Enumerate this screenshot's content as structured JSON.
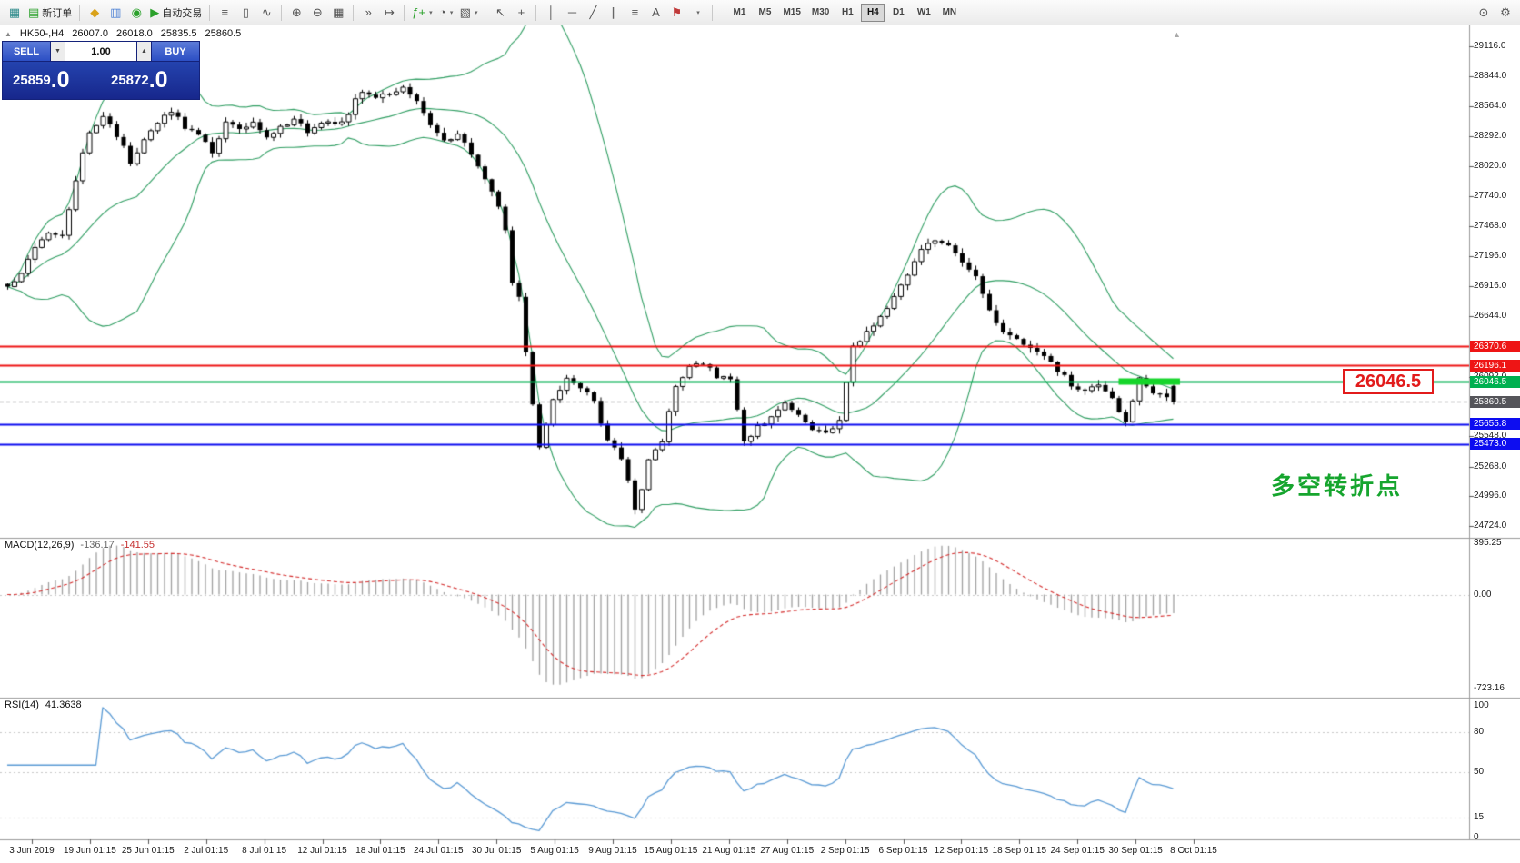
{
  "icons": {
    "chart_window": "▦",
    "new_order": "▤",
    "mql": "◆",
    "charts": "▥",
    "community": "◉",
    "play": "▶",
    "bars": "≡",
    "candles": "▯",
    "line": "∿",
    "zoom_in": "⊕",
    "zoom_out": "⊖",
    "tile": "▦",
    "autoscroll": "»",
    "shift": "↦",
    "indicators": "ƒ+",
    "periods": "◔",
    "templates": "▧",
    "cursor": "↖",
    "crosshair": "+",
    "vline": "│",
    "hline": "─",
    "trend": "╱",
    "channel": "∥",
    "fib": "≡",
    "text": "A",
    "flag": "⚑",
    "dropdown": "▾",
    "search": "⊙",
    "settings": "⚙",
    "collapse": "▲",
    "spin_up": "▲",
    "spin_down": "▼",
    "shift_marker": "▲"
  },
  "toolbar": {
    "new_order_label": "新订单",
    "autotrading_label": "自动交易",
    "timeframes": [
      "M1",
      "M5",
      "M15",
      "M30",
      "H1",
      "H4",
      "D1",
      "W1",
      "MN"
    ],
    "active_timeframe": "H4"
  },
  "trade_panel": {
    "sell_label": "SELL",
    "buy_label": "BUY",
    "volume": "1.00",
    "sell_price": "25859",
    "sell_price_decimal": ".0",
    "buy_price": "25872",
    "buy_price_decimal": ".0"
  },
  "chart_header": {
    "symbol": "HK50-,H4",
    "open": "26007.0",
    "high": "26018.0",
    "low": "25835.5",
    "close": "25860.5"
  },
  "annotations": {
    "level_label": "26046.5",
    "cn_note": "多空转折点"
  },
  "chart_data": {
    "type": "candlestick",
    "symbol": "HK50",
    "timeframe": "H4",
    "price_range": [
      24724.0,
      29116.0
    ],
    "price_axis_labels": [
      29116.0,
      28844.0,
      28564.0,
      28292.0,
      28020.0,
      27740.0,
      27468.0,
      27196.0,
      26916.0,
      26644.0,
      26092.0,
      25548.0,
      25268.0,
      24996.0,
      24724.0
    ],
    "levels": [
      {
        "price": 26370.6,
        "kind": "resistance-1",
        "color": "#ee1515",
        "width": 2
      },
      {
        "price": 26196.1,
        "kind": "resistance-2",
        "color": "#ee1515",
        "width": 2
      },
      {
        "price": 26046.5,
        "kind": "key-level",
        "color": "#00b050",
        "width": 2
      },
      {
        "price": 25860.5,
        "kind": "current-price",
        "color": "#55555a",
        "width": 1,
        "dashed": true
      },
      {
        "price": 25655.8,
        "kind": "support-1",
        "color": "#0d0df0",
        "width": 2
      },
      {
        "price": 25473.0,
        "kind": "support-2",
        "color": "#0d0df0",
        "width": 2
      }
    ],
    "highlight_zone": {
      "price": 26046.5,
      "start_index": 163,
      "end_index": 172,
      "color": "#15d52a"
    },
    "candle_count": 172,
    "candle_colors": {
      "up": "#ffffff",
      "down": "#000000",
      "border": "#000000"
    },
    "bollinger": {
      "period": 20,
      "deviation": 2,
      "color": "#2f9e62"
    },
    "close_anchors": [
      [
        0,
        26900
      ],
      [
        2,
        27060
      ],
      [
        4,
        27260
      ],
      [
        6,
        27430
      ],
      [
        8,
        27380
      ],
      [
        10,
        27900
      ],
      [
        12,
        28340
      ],
      [
        14,
        28480
      ],
      [
        16,
        28300
      ],
      [
        18,
        28060
      ],
      [
        20,
        28260
      ],
      [
        22,
        28400
      ],
      [
        24,
        28520
      ],
      [
        26,
        28380
      ],
      [
        28,
        28290
      ],
      [
        30,
        28160
      ],
      [
        32,
        28420
      ],
      [
        34,
        28350
      ],
      [
        36,
        28430
      ],
      [
        38,
        28300
      ],
      [
        40,
        28380
      ],
      [
        42,
        28450
      ],
      [
        44,
        28340
      ],
      [
        46,
        28420
      ],
      [
        48,
        28380
      ],
      [
        50,
        28510
      ],
      [
        52,
        28720
      ],
      [
        54,
        28630
      ],
      [
        56,
        28680
      ],
      [
        58,
        28760
      ],
      [
        60,
        28600
      ],
      [
        62,
        28400
      ],
      [
        64,
        28240
      ],
      [
        66,
        28310
      ],
      [
        68,
        28140
      ],
      [
        70,
        27890
      ],
      [
        72,
        27640
      ],
      [
        73,
        27450
      ],
      [
        74,
        26950
      ],
      [
        75,
        26840
      ],
      [
        76,
        26340
      ],
      [
        77,
        25840
      ],
      [
        78,
        25440
      ],
      [
        79,
        25650
      ],
      [
        80,
        25900
      ],
      [
        82,
        26060
      ],
      [
        84,
        26000
      ],
      [
        86,
        25850
      ],
      [
        88,
        25500
      ],
      [
        90,
        25340
      ],
      [
        92,
        24900
      ],
      [
        93,
        25060
      ],
      [
        94,
        25350
      ],
      [
        96,
        25520
      ],
      [
        98,
        26010
      ],
      [
        100,
        26160
      ],
      [
        102,
        26230
      ],
      [
        104,
        26100
      ],
      [
        106,
        26050
      ],
      [
        108,
        25480
      ],
      [
        110,
        25650
      ],
      [
        112,
        25710
      ],
      [
        114,
        25860
      ],
      [
        116,
        25760
      ],
      [
        118,
        25610
      ],
      [
        120,
        25560
      ],
      [
        122,
        25710
      ],
      [
        124,
        26350
      ],
      [
        126,
        26500
      ],
      [
        128,
        26650
      ],
      [
        130,
        26810
      ],
      [
        132,
        27010
      ],
      [
        134,
        27260
      ],
      [
        136,
        27360
      ],
      [
        138,
        27300
      ],
      [
        140,
        27150
      ],
      [
        142,
        27010
      ],
      [
        144,
        26700
      ],
      [
        146,
        26510
      ],
      [
        148,
        26450
      ],
      [
        150,
        26360
      ],
      [
        152,
        26300
      ],
      [
        154,
        26160
      ],
      [
        156,
        26010
      ],
      [
        158,
        25950
      ],
      [
        160,
        26010
      ],
      [
        162,
        25900
      ],
      [
        164,
        25680
      ],
      [
        166,
        26060
      ],
      [
        168,
        25960
      ],
      [
        171,
        25860.5
      ]
    ],
    "macd": {
      "label": "MACD(12,26,9)",
      "value": "-136.17",
      "signal_value": "-141.55",
      "axis_labels": [
        "395.25",
        "0.00",
        "-723.16"
      ],
      "range": [
        -723.16,
        395.25
      ],
      "histogram_color": "#a0a0a0",
      "signal_color": "#d42a2a"
    },
    "rsi": {
      "label": "RSI(14)",
      "value": "41.3638",
      "axis_labels": [
        "100",
        "80",
        "50",
        "15",
        "0"
      ],
      "levels": [
        80,
        50,
        15
      ],
      "range": [
        0,
        100
      ],
      "color": "#5b9bd5"
    },
    "time_axis_labels": [
      "3 Jun 2019",
      "19 Jun 01:15",
      "25 Jun 01:15",
      "2 Jul 01:15",
      "8 Jul 01:15",
      "12 Jul 01:15",
      "18 Jul 01:15",
      "24 Jul 01:15",
      "30 Jul 01:15",
      "5 Aug 01:15",
      "9 Aug 01:15",
      "15 Aug 01:15",
      "21 Aug 01:15",
      "27 Aug 01:15",
      "2 Sep 01:15",
      "6 Sep 01:15",
      "12 Sep 01:15",
      "18 Sep 01:15",
      "24 Sep 01:15",
      "30 Sep 01:15",
      "8 Oct 01:15"
    ]
  }
}
